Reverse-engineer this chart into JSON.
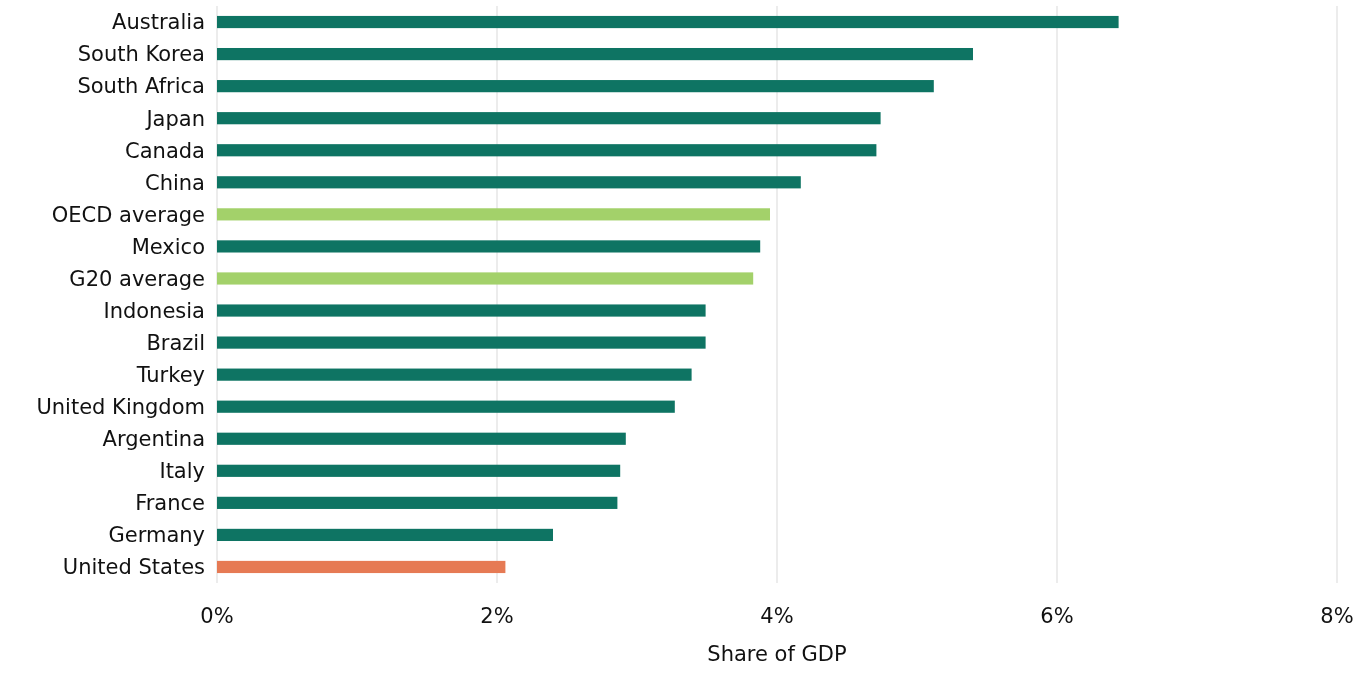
{
  "chart_data": {
    "type": "bar",
    "orientation": "horizontal",
    "xlabel": "Share of GDP",
    "categories": [
      "Australia",
      "South Korea",
      "South Africa",
      "Japan",
      "Canada",
      "China",
      "OECD average",
      "Mexico",
      "G20 average",
      "Indonesia",
      "Brazil",
      "Turkey",
      "United Kingdom",
      "Argentina",
      "Italy",
      "France",
      "Germany",
      "United States"
    ],
    "values": [
      6.44,
      5.4,
      5.12,
      4.74,
      4.71,
      4.17,
      3.95,
      3.88,
      3.83,
      3.49,
      3.49,
      3.39,
      3.27,
      2.92,
      2.88,
      2.86,
      2.4,
      2.06
    ],
    "colors": [
      "#0e7463",
      "#0e7463",
      "#0e7463",
      "#0e7463",
      "#0e7463",
      "#0e7463",
      "#a3d16a",
      "#0e7463",
      "#a3d16a",
      "#0e7463",
      "#0e7463",
      "#0e7463",
      "#0e7463",
      "#0e7463",
      "#0e7463",
      "#0e7463",
      "#0e7463",
      "#e67a54"
    ],
    "xlim": [
      0,
      8
    ],
    "xticks": [
      {
        "value": 0,
        "label": "0%"
      },
      {
        "value": 2,
        "label": "2%"
      },
      {
        "value": 4,
        "label": "4%"
      },
      {
        "value": 6,
        "label": "6%"
      },
      {
        "value": 8,
        "label": "8%"
      }
    ],
    "grid": "x"
  }
}
